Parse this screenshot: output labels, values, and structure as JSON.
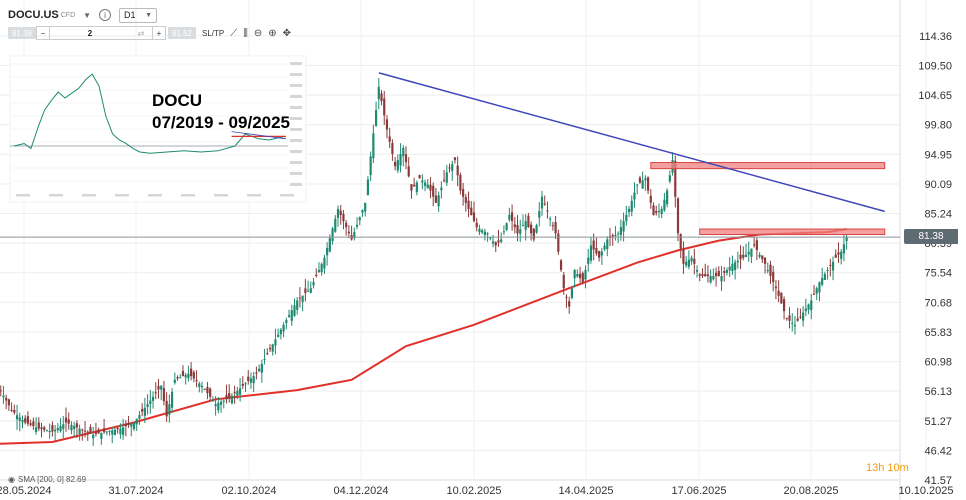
{
  "toolbar": {
    "symbol": "DOCU.US",
    "instrument_type": "CFD",
    "timeframe": "D1",
    "sell_price": "81.38",
    "quantity": "2",
    "buy_price": "81.52",
    "sltp_label": "SL/TP"
  },
  "annotation": {
    "line1": "DOCU",
    "line2": "07/2019 - 09/2025"
  },
  "sma_legend": "SMA [200, 0] 82.69",
  "countdown": "13h 10m",
  "current_price_label": "81.38",
  "chart_data": {
    "type": "candlestick",
    "title": "",
    "ylim": [
      41.57,
      118.0
    ],
    "y_ticks": [
      "114.36",
      "109.50",
      "104.65",
      "99.80",
      "94.95",
      "90.09",
      "85.24",
      "80.39",
      "75.54",
      "70.68",
      "65.83",
      "60.98",
      "56.13",
      "51.27",
      "46.42",
      "41.57"
    ],
    "x_ticks": [
      "28.05.2024",
      "31.07.2024",
      "02.10.2024",
      "04.12.2024",
      "10.02.2025",
      "14.04.2025",
      "17.06.2025",
      "20.08.2025",
      "10.10.2025"
    ],
    "price_path": [
      [
        0,
        57
      ],
      [
        5,
        53
      ],
      [
        10,
        51
      ],
      [
        15,
        50
      ],
      [
        20,
        49.5
      ],
      [
        25,
        51
      ],
      [
        30,
        50
      ],
      [
        35,
        49
      ],
      [
        40,
        49.5
      ],
      [
        45,
        50
      ],
      [
        50,
        51
      ],
      [
        55,
        54
      ],
      [
        60,
        57
      ],
      [
        62,
        52
      ],
      [
        65,
        58
      ],
      [
        70,
        59
      ],
      [
        75,
        57
      ],
      [
        80,
        54
      ],
      [
        85,
        55
      ],
      [
        90,
        57
      ],
      [
        95,
        59
      ],
      [
        100,
        63
      ],
      [
        105,
        67
      ],
      [
        110,
        71
      ],
      [
        115,
        73
      ],
      [
        120,
        78
      ],
      [
        125,
        86
      ],
      [
        130,
        81
      ],
      [
        135,
        87
      ],
      [
        140,
        106
      ],
      [
        143,
        99
      ],
      [
        146,
        93
      ],
      [
        149,
        96
      ],
      [
        152,
        89
      ],
      [
        155,
        91
      ],
      [
        158,
        90
      ],
      [
        161,
        87
      ],
      [
        165,
        92
      ],
      [
        168,
        94
      ],
      [
        170,
        89
      ],
      [
        173,
        86
      ],
      [
        176,
        83
      ],
      [
        180,
        82
      ],
      [
        183,
        80
      ],
      [
        185,
        81
      ],
      [
        188,
        85
      ],
      [
        191,
        82
      ],
      [
        194,
        84
      ],
      [
        197,
        81
      ],
      [
        200,
        88
      ],
      [
        205,
        82
      ],
      [
        208,
        73
      ],
      [
        210,
        70
      ],
      [
        212,
        76
      ],
      [
        215,
        74
      ],
      [
        218,
        80
      ],
      [
        221,
        78
      ],
      [
        224,
        81
      ],
      [
        228,
        82
      ],
      [
        232,
        86
      ],
      [
        235,
        90
      ],
      [
        238,
        91
      ],
      [
        241,
        85
      ],
      [
        244,
        86
      ],
      [
        246,
        89
      ],
      [
        248,
        94
      ],
      [
        250,
        82
      ],
      [
        252,
        77
      ],
      [
        255,
        78
      ],
      [
        258,
        75
      ],
      [
        262,
        75
      ],
      [
        266,
        75
      ],
      [
        270,
        77
      ],
      [
        274,
        78
      ],
      [
        278,
        80
      ],
      [
        282,
        77
      ],
      [
        286,
        73
      ],
      [
        290,
        68
      ],
      [
        293,
        67
      ],
      [
        296,
        69
      ],
      [
        299,
        71
      ],
      [
        302,
        74
      ],
      [
        305,
        76
      ],
      [
        308,
        78
      ],
      [
        310,
        79
      ],
      [
        312,
        81.4
      ]
    ],
    "sma_200": [
      [
        0,
        47.5
      ],
      [
        20,
        47.8
      ],
      [
        50,
        51
      ],
      [
        80,
        54.8
      ],
      [
        110,
        56.3
      ],
      [
        130,
        58
      ],
      [
        150,
        63.5
      ],
      [
        175,
        67
      ],
      [
        210,
        73
      ],
      [
        235,
        77.2
      ],
      [
        250,
        79.2
      ],
      [
        265,
        80.8
      ],
      [
        280,
        81.8
      ],
      [
        305,
        82.2
      ],
      [
        312,
        82.69
      ]
    ],
    "trendline": {
      "from": [
        140,
        108.3
      ],
      "to": [
        326,
        85.6
      ],
      "color": "#3f46b8"
    },
    "resistance_zones": [
      {
        "x_from": 240,
        "x_to": 326,
        "y_from": 92.6,
        "y_to": 93.6
      },
      {
        "x_from": 258,
        "x_to": 326,
        "y_from": 81.8,
        "y_to": 82.7
      }
    ],
    "current_price": 81.38,
    "colors": {
      "up": "#1f8a70",
      "down": "#8b3a3a",
      "sma": "#e0302a",
      "zone_fill": "#f08080",
      "zone_stroke": "#d64545",
      "price_line": "#8a9399"
    },
    "inset": {
      "title": "",
      "path": [
        [
          0,
          30
        ],
        [
          3,
          32
        ],
        [
          5,
          28
        ],
        [
          7,
          45
        ],
        [
          9,
          60
        ],
        [
          11,
          68
        ],
        [
          13,
          75
        ],
        [
          15,
          70
        ],
        [
          17,
          74
        ],
        [
          19,
          78
        ],
        [
          21,
          85
        ],
        [
          23,
          90
        ],
        [
          25,
          80
        ],
        [
          27,
          55
        ],
        [
          29,
          40
        ],
        [
          31,
          35
        ],
        [
          33,
          32
        ],
        [
          35,
          28
        ],
        [
          37,
          25
        ],
        [
          40,
          24
        ],
        [
          45,
          25
        ],
        [
          50,
          26
        ],
        [
          55,
          25
        ],
        [
          60,
          26
        ],
        [
          65,
          30
        ],
        [
          68,
          40
        ],
        [
          70,
          38
        ],
        [
          72,
          36
        ],
        [
          75,
          35
        ],
        [
          78,
          37
        ],
        [
          80,
          38
        ]
      ],
      "red_segment": [
        [
          64,
          38
        ],
        [
          80,
          38
        ]
      ],
      "blue_segment": [
        [
          64,
          42
        ],
        [
          80,
          36
        ]
      ]
    }
  }
}
